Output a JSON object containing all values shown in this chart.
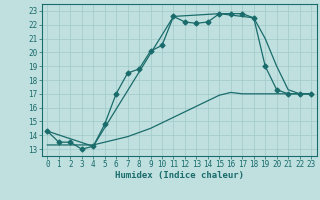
{
  "background_color": "#c0e0e0",
  "plot_bg_color": "#c0e0e0",
  "grid_color": "#a0c8c8",
  "line_color": "#1a6b6b",
  "xlabel": "Humidex (Indice chaleur)",
  "xlim": [
    -0.5,
    23.5
  ],
  "ylim": [
    12.5,
    23.5
  ],
  "yticks": [
    13,
    14,
    15,
    16,
    17,
    18,
    19,
    20,
    21,
    22,
    23
  ],
  "xticks": [
    0,
    1,
    2,
    3,
    4,
    5,
    6,
    7,
    8,
    9,
    10,
    11,
    12,
    13,
    14,
    15,
    16,
    17,
    18,
    19,
    20,
    21,
    22,
    23
  ],
  "line1_x": [
    0,
    1,
    2,
    3,
    4,
    5,
    6,
    7,
    8,
    9,
    10,
    11,
    12,
    13,
    14,
    15,
    16,
    17,
    18,
    19,
    20,
    21,
    22,
    23
  ],
  "line1_y": [
    14.3,
    13.5,
    13.5,
    13.0,
    13.2,
    14.8,
    17.0,
    18.5,
    18.8,
    20.1,
    20.5,
    22.6,
    22.2,
    22.1,
    22.2,
    22.8,
    22.8,
    22.8,
    22.5,
    19.0,
    17.3,
    17.0,
    17.0,
    17.0
  ],
  "line2_x": [
    0,
    1,
    2,
    3,
    4,
    5,
    6,
    7,
    8,
    9,
    10,
    11,
    12,
    13,
    14,
    15,
    16,
    17,
    18,
    19,
    20,
    21,
    22,
    23
  ],
  "line2_y": [
    13.3,
    13.3,
    13.3,
    13.3,
    13.3,
    13.5,
    13.7,
    13.9,
    14.2,
    14.5,
    14.9,
    15.3,
    15.7,
    16.1,
    16.5,
    16.9,
    17.1,
    17.0,
    17.0,
    17.0,
    17.0,
    17.0,
    17.0,
    17.0
  ],
  "line3_x": [
    0,
    4,
    11,
    15,
    18,
    19,
    20,
    21,
    22,
    23
  ],
  "line3_y": [
    14.3,
    13.2,
    22.6,
    22.8,
    22.5,
    21.0,
    19.0,
    17.3,
    17.0,
    17.0
  ],
  "marker_size": 2.5,
  "line_width": 0.9
}
